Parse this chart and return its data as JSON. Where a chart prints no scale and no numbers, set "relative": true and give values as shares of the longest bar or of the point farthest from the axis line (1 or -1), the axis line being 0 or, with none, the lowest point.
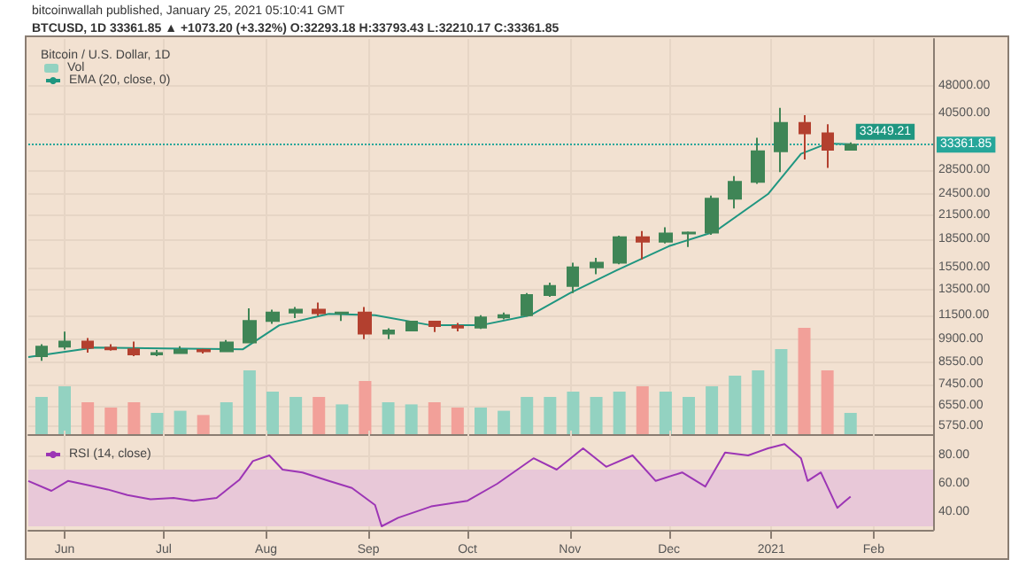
{
  "chart_data": [
    {
      "type": "candlestick",
      "title": "Bitcoin / U.S. Dollar, 1D",
      "annotations": [
        "bitcoinwallah published, January 25, 2021 05:10:41 GMT",
        "BTCUSD, 1D 33361.85 ▲ +1073.20 (+3.32%) O:32293.18 H:33793.43 L:32210.17 C:33361.85"
      ],
      "x": [
        "2020-05-25",
        "2020-06-01",
        "2020-06-08",
        "2020-06-15",
        "2020-06-22",
        "2020-06-29",
        "2020-07-06",
        "2020-07-13",
        "2020-07-20",
        "2020-07-27",
        "2020-08-03",
        "2020-08-10",
        "2020-08-17",
        "2020-08-24",
        "2020-08-31",
        "2020-09-07",
        "2020-09-14",
        "2020-09-21",
        "2020-09-28",
        "2020-10-05",
        "2020-10-12",
        "2020-10-19",
        "2020-10-26",
        "2020-11-02",
        "2020-11-09",
        "2020-11-16",
        "2020-11-23",
        "2020-11-30",
        "2020-12-07",
        "2020-12-14",
        "2020-12-21",
        "2020-12-28",
        "2021-01-04",
        "2021-01-11",
        "2021-01-18",
        "2021-01-25"
      ],
      "ohlc": [
        [
          8900,
          9600,
          8650,
          9450
        ],
        [
          9450,
          10380,
          9280,
          9750
        ],
        [
          9750,
          9980,
          9100,
          9390
        ],
        [
          9390,
          9590,
          9220,
          9300
        ],
        [
          9300,
          9760,
          8900,
          9000
        ],
        [
          9000,
          9250,
          8900,
          9080
        ],
        [
          9080,
          9470,
          9050,
          9250
        ],
        [
          9250,
          9320,
          9050,
          9180
        ],
        [
          9180,
          9850,
          9130,
          9700
        ],
        [
          9700,
          12000,
          9700,
          11100
        ],
        [
          11100,
          11900,
          10900,
          11700
        ],
        [
          11700,
          12100,
          11300,
          11900
        ],
        [
          11900,
          12450,
          11450,
          11650
        ],
        [
          11650,
          11750,
          11100,
          11700
        ],
        [
          11700,
          12100,
          9900,
          10250
        ],
        [
          10250,
          10600,
          9900,
          10450
        ],
        [
          10450,
          11100,
          10400,
          11050
        ],
        [
          11050,
          11050,
          10350,
          10750
        ],
        [
          10750,
          10950,
          10400,
          10650
        ],
        [
          10650,
          11500,
          10550,
          11350
        ],
        [
          11350,
          11700,
          11200,
          11500
        ],
        [
          11500,
          13200,
          11400,
          13050
        ],
        [
          13050,
          14100,
          12900,
          13800
        ],
        [
          13800,
          15950,
          13200,
          15500
        ],
        [
          15500,
          16450,
          14850,
          15950
        ],
        [
          15950,
          18900,
          15800,
          18700
        ],
        [
          18700,
          19450,
          16300,
          18200
        ],
        [
          18200,
          19900,
          18000,
          19150
        ],
        [
          19150,
          19400,
          17600,
          19250
        ],
        [
          19250,
          24250,
          19000,
          23800
        ],
        [
          23800,
          27400,
          22400,
          26450
        ],
        [
          26450,
          34800,
          26100,
          32000
        ],
        [
          32000,
          41950,
          28100,
          38200
        ],
        [
          38200,
          40100,
          30400,
          35800
        ],
        [
          35800,
          37850,
          28850,
          32300
        ],
        [
          32293.18,
          33793.43,
          32210.17,
          33361.85
        ]
      ],
      "colors": [
        "#3f8556",
        "#3f8556",
        "#b3402f",
        "#b3402f",
        "#b3402f",
        "#3f8556",
        "#3f8556",
        "#b3402f",
        "#3f8556",
        "#3f8556",
        "#3f8556",
        "#3f8556",
        "#b3402f",
        "#3f8556",
        "#b3402f",
        "#3f8556",
        "#3f8556",
        "#b3402f",
        "#b3402f",
        "#3f8556",
        "#3f8556",
        "#3f8556",
        "#3f8556",
        "#3f8556",
        "#3f8556",
        "#3f8556",
        "#b3402f",
        "#3f8556",
        "#3f8556",
        "#3f8556",
        "#3f8556",
        "#3f8556",
        "#3f8556",
        "#b3402f",
        "#b3402f",
        "#3f8556"
      ],
      "series": [
        {
          "name": "EMA (20, close, 0)",
          "type": "line",
          "color": "#1f9680",
          "x": [
            "2020-05-21",
            "2020-06-10",
            "2020-07-01",
            "2020-07-25",
            "2020-08-05",
            "2020-08-20",
            "2020-09-03",
            "2020-09-20",
            "2020-10-05",
            "2020-10-20",
            "2020-11-01",
            "2020-11-15",
            "2020-12-01",
            "2020-12-15",
            "2020-12-31",
            "2021-01-10",
            "2021-01-18",
            "2021-01-25"
          ],
          "values": [
            8850,
            9400,
            9350,
            9300,
            10800,
            11600,
            11500,
            10800,
            10800,
            11500,
            13200,
            15200,
            17700,
            19400,
            24500,
            31500,
            33600,
            33449.21
          ],
          "value_labels": [
            null,
            null,
            null,
            null,
            null,
            null,
            null,
            null,
            null,
            null,
            null,
            null,
            null,
            null,
            null,
            null,
            null,
            "33449.21"
          ]
        }
      ],
      "log": true,
      "ylim": [
        4900,
        64500
      ],
      "yticks": [
        {
          "value": 5750,
          "label": "5750.00"
        },
        {
          "value": 6550,
          "label": "6550.00"
        },
        {
          "value": 7450,
          "label": "7450.00"
        },
        {
          "value": 8550,
          "label": "8550.00"
        },
        {
          "value": 9900,
          "label": "9900.00"
        },
        {
          "value": 11500,
          "label": "11500.00"
        },
        {
          "value": 13500,
          "label": "13500.00"
        },
        {
          "value": 15500,
          "label": "15500.00"
        },
        {
          "value": 18500,
          "label": "18500.00"
        },
        {
          "value": 21500,
          "label": "21500.00"
        },
        {
          "value": 24500,
          "label": "24500.00"
        },
        {
          "value": 28500,
          "label": "28500.00"
        },
        {
          "value": 40500,
          "label": "40500.00"
        },
        {
          "value": 48000,
          "label": "48000.00"
        }
      ],
      "xlim": [
        "2020-05-21",
        "2021-02-19"
      ],
      "xticks": [
        {
          "value": "2020-06-01",
          "label": null
        },
        {
          "value": "2020-07-01",
          "label": null
        },
        {
          "value": "2020-08-01",
          "label": null
        },
        {
          "value": "2020-09-01",
          "label": null
        },
        {
          "value": "2020-10-01",
          "label": null
        },
        {
          "value": "2020-11-01",
          "label": null
        },
        {
          "value": "2020-12-01",
          "label": null
        },
        {
          "value": "2021-01-01",
          "label": null
        },
        {
          "value": "2021-02-01",
          "label": null
        }
      ],
      "tick_labels": "y",
      "grid": true,
      "legend": "top left",
      "ref_lines": [
        {
          "axis": "y",
          "value": 33361.85,
          "label": "33361.85",
          "color": "#26a69a",
          "line_style": "dotted"
        }
      ]
    },
    {
      "type": "bar",
      "relative": true,
      "tick_labels": false,
      "legend": "top left",
      "xlim": [
        "2020-05-21",
        "2021-02-19"
      ],
      "x": [
        "2020-05-25",
        "2020-06-01",
        "2020-06-08",
        "2020-06-15",
        "2020-06-22",
        "2020-06-29",
        "2020-07-06",
        "2020-07-13",
        "2020-07-20",
        "2020-07-27",
        "2020-08-03",
        "2020-08-10",
        "2020-08-17",
        "2020-08-24",
        "2020-08-31",
        "2020-09-07",
        "2020-09-14",
        "2020-09-21",
        "2020-09-28",
        "2020-10-05",
        "2020-10-12",
        "2020-10-19",
        "2020-10-26",
        "2020-11-02",
        "2020-11-09",
        "2020-11-16",
        "2020-11-23",
        "2020-11-30",
        "2020-12-07",
        "2020-12-14",
        "2020-12-21",
        "2020-12-28",
        "2021-01-04",
        "2021-01-11",
        "2021-01-18",
        "2021-01-25"
      ],
      "series": [
        {
          "name": "Vol",
          "values": [
            0.35,
            0.45,
            0.3,
            0.25,
            0.3,
            0.2,
            0.22,
            0.18,
            0.3,
            0.6,
            0.4,
            0.35,
            0.35,
            0.28,
            0.5,
            0.3,
            0.28,
            0.3,
            0.25,
            0.25,
            0.22,
            0.35,
            0.35,
            0.4,
            0.35,
            0.4,
            0.45,
            0.4,
            0.35,
            0.45,
            0.55,
            0.6,
            0.8,
            1,
            0.6,
            0.2
          ],
          "colors": [
            "#93d2c1",
            "#93d2c1",
            "#f2a099",
            "#f2a099",
            "#f2a099",
            "#93d2c1",
            "#93d2c1",
            "#f2a099",
            "#93d2c1",
            "#93d2c1",
            "#93d2c1",
            "#93d2c1",
            "#f2a099",
            "#93d2c1",
            "#f2a099",
            "#93d2c1",
            "#93d2c1",
            "#f2a099",
            "#f2a099",
            "#93d2c1",
            "#93d2c1",
            "#93d2c1",
            "#93d2c1",
            "#93d2c1",
            "#93d2c1",
            "#93d2c1",
            "#f2a099",
            "#93d2c1",
            "#93d2c1",
            "#93d2c1",
            "#93d2c1",
            "#93d2c1",
            "#93d2c1",
            "#f2a099",
            "#f2a099",
            "#93d2c1"
          ]
        }
      ]
    },
    {
      "type": "line",
      "legend": "top left",
      "grid": true,
      "marker": "none",
      "series": [
        {
          "name": "RSI (14, close)",
          "color": "#9c35b5",
          "x": [
            "2020-05-21",
            "2020-05-28",
            "2020-06-02",
            "2020-06-08",
            "2020-06-14",
            "2020-06-20",
            "2020-06-27",
            "2020-07-04",
            "2020-07-10",
            "2020-07-17",
            "2020-07-24",
            "2020-07-28",
            "2020-08-02",
            "2020-08-06",
            "2020-08-12",
            "2020-08-20",
            "2020-08-27",
            "2020-09-03",
            "2020-09-05",
            "2020-09-10",
            "2020-09-20",
            "2020-10-01",
            "2020-10-10",
            "2020-10-21",
            "2020-10-28",
            "2020-11-05",
            "2020-11-12",
            "2020-11-20",
            "2020-11-27",
            "2020-12-05",
            "2020-12-12",
            "2020-12-18",
            "2020-12-25",
            "2020-12-31",
            "2021-01-05",
            "2021-01-10",
            "2021-01-12",
            "2021-01-16",
            "2021-01-21",
            "2021-01-23",
            "2021-01-25"
          ],
          "values": [
            62,
            55,
            62,
            59,
            56,
            52,
            49,
            50,
            48,
            50,
            63,
            76,
            80,
            70,
            68,
            62,
            57,
            45,
            30,
            36,
            44,
            48,
            60,
            78,
            70,
            85,
            72,
            80,
            62,
            68,
            58,
            82,
            80,
            85,
            88,
            78,
            62,
            68,
            43,
            47,
            51
          ]
        }
      ],
      "ylim": [
        27.5,
        97.5
      ],
      "yticks": [
        {
          "value": 40,
          "label": "40.00"
        },
        {
          "value": 60,
          "label": "60.00"
        },
        {
          "value": 80,
          "label": "80.00"
        }
      ],
      "xlim": [
        "2020-05-21",
        "2021-02-19"
      ],
      "xticks": [
        {
          "value": "2020-06-01",
          "label": "Jun"
        },
        {
          "value": "2020-07-01",
          "label": "Jul"
        },
        {
          "value": "2020-08-01",
          "label": "Aug"
        },
        {
          "value": "2020-09-01",
          "label": "Sep"
        },
        {
          "value": "2020-10-01",
          "label": "Oct"
        },
        {
          "value": "2020-11-01",
          "label": "Nov"
        },
        {
          "value": "2020-12-01",
          "label": "Dec"
        },
        {
          "value": "2021-01-01",
          "label": "2021"
        },
        {
          "value": "2021-02-01",
          "label": "Feb"
        }
      ],
      "bands": [
        {
          "axis": "y",
          "from": 30,
          "to": 70,
          "color": "#e8c8d8"
        }
      ]
    }
  ]
}
